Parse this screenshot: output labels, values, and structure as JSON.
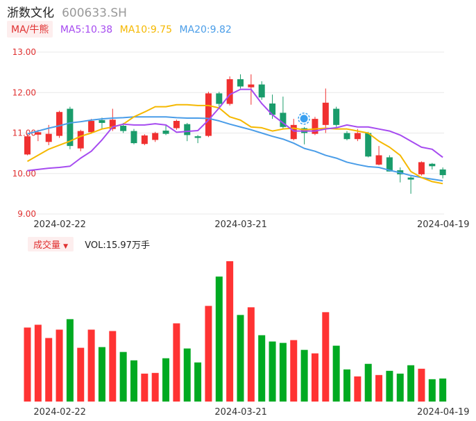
{
  "header": {
    "name": "浙数文化",
    "code": "600633.SH"
  },
  "ma_legend": {
    "tag": "MA/牛熊",
    "items": [
      {
        "label": "MA5:10.38",
        "color": "#a64bf0"
      },
      {
        "label": "MA10:9.75",
        "color": "#f5b800"
      },
      {
        "label": "MA20:9.82",
        "color": "#4a9de8"
      }
    ]
  },
  "volume_legend": {
    "tag": "成交量",
    "caret": "▼",
    "label": "VOL:15.97万手"
  },
  "colors": {
    "up": "#f03030",
    "down": "#1a9c6b",
    "vol_up": "#ff3333",
    "vol_down": "#00aa22",
    "grid": "#e8e8e8",
    "marker": "#3aa0f0"
  },
  "chart_data": [
    {
      "type": "candlestick",
      "ylim": [
        9.0,
        13.0
      ],
      "y_ticks": [
        "13.00",
        "12.00",
        "11.00",
        "10.00",
        "9.00"
      ],
      "x_tick_labels": [
        {
          "index": 2,
          "label": "2024-02-22"
        },
        {
          "index": 19,
          "label": "2024-03-21"
        },
        {
          "index": 38,
          "label": "2024-04-19"
        }
      ],
      "marker_index": 26,
      "candles": [
        {
          "o": 10.47,
          "c": 10.92,
          "h": 10.97,
          "l": 10.45
        },
        {
          "o": 10.96,
          "c": 11.02,
          "h": 11.08,
          "l": 10.8
        },
        {
          "o": 10.78,
          "c": 10.98,
          "h": 11.2,
          "l": 10.7
        },
        {
          "o": 10.93,
          "c": 11.52,
          "h": 11.55,
          "l": 10.88
        },
        {
          "o": 11.6,
          "c": 10.68,
          "h": 11.65,
          "l": 10.6
        },
        {
          "o": 10.62,
          "c": 11.05,
          "h": 11.08,
          "l": 10.55
        },
        {
          "o": 11.02,
          "c": 11.3,
          "h": 11.35,
          "l": 10.98
        },
        {
          "o": 11.32,
          "c": 11.25,
          "h": 11.38,
          "l": 11.1
        },
        {
          "o": 11.1,
          "c": 11.33,
          "h": 11.6,
          "l": 11.05
        },
        {
          "o": 11.18,
          "c": 11.05,
          "h": 11.25,
          "l": 11.0
        },
        {
          "o": 11.05,
          "c": 10.75,
          "h": 11.1,
          "l": 10.72
        },
        {
          "o": 10.73,
          "c": 10.94,
          "h": 10.97,
          "l": 10.7
        },
        {
          "o": 10.83,
          "c": 11.0,
          "h": 11.03,
          "l": 10.78
        },
        {
          "o": 11.06,
          "c": 10.98,
          "h": 11.2,
          "l": 10.95
        },
        {
          "o": 11.12,
          "c": 11.3,
          "h": 11.33,
          "l": 11.08
        },
        {
          "o": 11.22,
          "c": 10.95,
          "h": 11.25,
          "l": 10.8
        },
        {
          "o": 10.92,
          "c": 10.88,
          "h": 10.95,
          "l": 10.75
        },
        {
          "o": 10.93,
          "c": 11.98,
          "h": 12.02,
          "l": 10.9
        },
        {
          "o": 11.98,
          "c": 11.72,
          "h": 12.02,
          "l": 11.65
        },
        {
          "o": 11.72,
          "c": 12.33,
          "h": 12.4,
          "l": 11.68
        },
        {
          "o": 12.33,
          "c": 12.15,
          "h": 12.45,
          "l": 12.1
        },
        {
          "o": 12.13,
          "c": 12.2,
          "h": 12.45,
          "l": 11.7
        },
        {
          "o": 12.2,
          "c": 11.88,
          "h": 12.28,
          "l": 11.82
        },
        {
          "o": 11.73,
          "c": 11.45,
          "h": 11.95,
          "l": 11.35
        },
        {
          "o": 11.5,
          "c": 11.15,
          "h": 11.9,
          "l": 11.1
        },
        {
          "o": 10.85,
          "c": 11.2,
          "h": 11.35,
          "l": 10.82
        },
        {
          "o": 11.12,
          "c": 11.0,
          "h": 11.15,
          "l": 10.72
        },
        {
          "o": 10.98,
          "c": 11.35,
          "h": 11.4,
          "l": 10.95
        },
        {
          "o": 11.2,
          "c": 11.75,
          "h": 12.1,
          "l": 11.0
        },
        {
          "o": 11.6,
          "c": 11.2,
          "h": 11.65,
          "l": 11.15
        },
        {
          "o": 11.0,
          "c": 10.85,
          "h": 11.05,
          "l": 10.82
        },
        {
          "o": 10.85,
          "c": 11.0,
          "h": 11.1,
          "l": 10.8
        },
        {
          "o": 11.0,
          "c": 10.42,
          "h": 11.03,
          "l": 10.4
        },
        {
          "o": 10.22,
          "c": 10.45,
          "h": 10.68,
          "l": 10.2
        },
        {
          "o": 10.4,
          "c": 10.05,
          "h": 10.45,
          "l": 10.05
        },
        {
          "o": 10.08,
          "c": 9.98,
          "h": 10.15,
          "l": 9.78
        },
        {
          "o": 9.9,
          "c": 9.85,
          "h": 9.93,
          "l": 9.5
        },
        {
          "o": 9.98,
          "c": 10.28,
          "h": 10.3,
          "l": 9.95
        },
        {
          "o": 10.24,
          "c": 10.18,
          "h": 10.26,
          "l": 10.1
        },
        {
          "o": 10.1,
          "c": 9.96,
          "h": 10.15,
          "l": 9.88
        }
      ],
      "ma5": [
        10.07,
        10.1,
        10.13,
        10.15,
        10.18,
        10.38,
        10.55,
        10.83,
        11.15,
        11.22,
        11.2,
        11.2,
        11.23,
        11.2,
        11.02,
        11.04,
        11.06,
        11.32,
        11.62,
        11.95,
        12.08,
        12.08,
        11.73,
        11.45,
        11.25,
        11.05,
        11.05,
        11.05,
        11.1,
        11.13,
        11.2,
        11.15,
        11.15,
        11.1,
        11.05,
        10.95,
        10.8,
        10.65,
        10.6,
        10.4
      ],
      "ma10": [
        10.3,
        10.45,
        10.6,
        10.7,
        10.8,
        10.92,
        11.0,
        11.1,
        11.15,
        11.22,
        11.4,
        11.52,
        11.65,
        11.65,
        11.7,
        11.7,
        11.68,
        11.68,
        11.62,
        11.4,
        11.32,
        11.15,
        11.13,
        11.05,
        11.1,
        11.12,
        11.08,
        11.1,
        11.12,
        11.1,
        11.1,
        11.05,
        11.0,
        10.8,
        10.65,
        10.45,
        10.05,
        9.9,
        9.8,
        9.75
      ],
      "ma20": [
        10.98,
        11.05,
        11.12,
        11.18,
        11.25,
        11.28,
        11.32,
        11.35,
        11.37,
        11.38,
        11.4,
        11.4,
        11.4,
        11.4,
        11.38,
        11.37,
        11.37,
        11.36,
        11.3,
        11.22,
        11.15,
        11.08,
        11.0,
        10.92,
        10.85,
        10.75,
        10.62,
        10.55,
        10.45,
        10.38,
        10.28,
        10.22,
        10.17,
        10.15,
        10.08,
        10.02,
        9.95,
        9.9,
        9.86,
        9.82
      ]
    },
    {
      "type": "bar",
      "x_tick_labels": [
        {
          "index": 2,
          "label": "2024-02-22"
        },
        {
          "index": 19,
          "label": "2024-03-21"
        },
        {
          "index": 38,
          "label": "2024-04-19"
        }
      ],
      "values": [
        10.6,
        11.0,
        9.1,
        10.3,
        11.8,
        7.7,
        10.3,
        7.8,
        10.1,
        7.1,
        5.9,
        4.0,
        4.1,
        6.2,
        11.2,
        7.6,
        5.6,
        13.7,
        17.9,
        20.1,
        12.4,
        13.5,
        9.5,
        8.6,
        8.4,
        8.8,
        7.4,
        6.9,
        12.8,
        8.0,
        4.6,
        3.6,
        5.4,
        3.8,
        4.4,
        4.0,
        5.2,
        4.7,
        3.2,
        3.3
      ],
      "up": [
        true,
        true,
        true,
        true,
        false,
        true,
        true,
        false,
        true,
        false,
        false,
        true,
        true,
        false,
        true,
        false,
        false,
        true,
        false,
        true,
        false,
        true,
        false,
        false,
        false,
        true,
        false,
        true,
        true,
        false,
        false,
        true,
        false,
        true,
        false,
        false,
        false,
        true,
        false,
        false
      ]
    }
  ]
}
